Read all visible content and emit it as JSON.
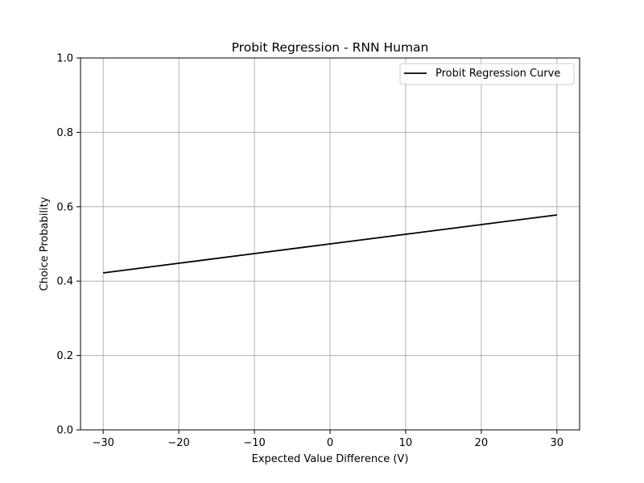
{
  "chart_data": {
    "type": "line",
    "title": "Probit Regression - RNN Human",
    "xlabel": "Expected Value Difference (V)",
    "ylabel": "Choice Probability",
    "xlim": [
      -33,
      33
    ],
    "ylim": [
      0.0,
      1.0
    ],
    "xticks": [
      -30,
      -20,
      -10,
      0,
      10,
      20,
      30
    ],
    "xtick_labels": [
      "−30",
      "−20",
      "−10",
      "0",
      "10",
      "20",
      "30"
    ],
    "yticks": [
      0.0,
      0.2,
      0.4,
      0.6,
      0.8,
      1.0
    ],
    "ytick_labels": [
      "0.0",
      "0.2",
      "0.4",
      "0.6",
      "0.8",
      "1.0"
    ],
    "grid": true,
    "legend_position": "top-right",
    "series": [
      {
        "name": "Probit Regression Curve",
        "color": "#000000",
        "x": [
          -30,
          -20,
          -10,
          0,
          10,
          20,
          30
        ],
        "y": [
          0.422,
          0.448,
          0.474,
          0.5,
          0.526,
          0.552,
          0.578
        ]
      }
    ]
  }
}
